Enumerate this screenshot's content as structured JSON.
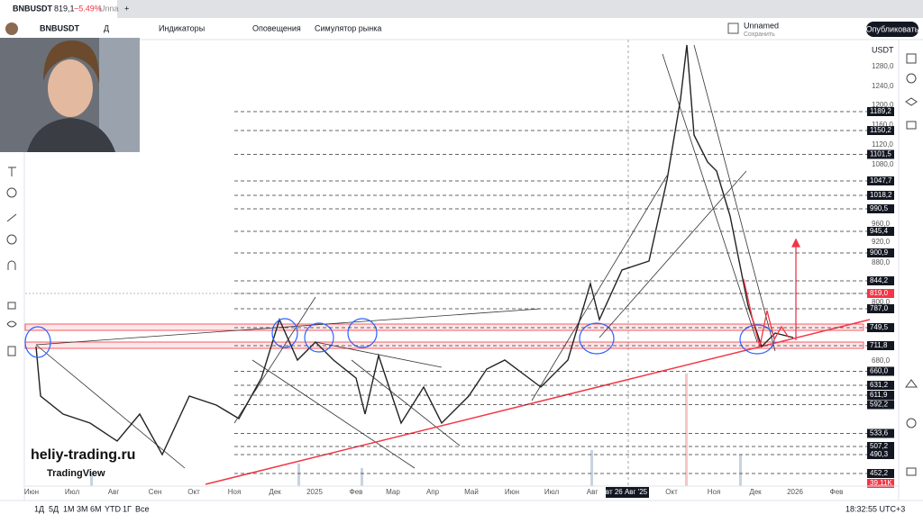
{
  "tab": {
    "symbol": "BNBUSDT",
    "price": "819,1",
    "change": "−5.49%",
    "rest": "Unna"
  },
  "toolbar": {
    "symbol": "BNBUSDT",
    "interval": "Д",
    "indicators": "Индикаторы",
    "alerts": "Оповещения",
    "replay": "Симулятор рынка",
    "layout_name": "Unnamed",
    "layout_sub": "Сохранить",
    "publish": "Опубликовать"
  },
  "price_axis": {
    "currency": "USDT",
    "ticks": [
      "1280,0",
      "1240,0",
      "1200,0",
      "1160,0",
      "1120,0",
      "1080,0",
      "960,0",
      "920,0",
      "880,0",
      "800,0",
      "680,0"
    ],
    "levels": [
      "1189,2",
      "1150,2",
      "1101,5",
      "1047,7",
      "1018,2",
      "990,5",
      "945,4",
      "900,9",
      "844,2",
      "819,0",
      "787,0",
      "749,5",
      "711,8",
      "660,0",
      "631,2",
      "611,9",
      "592,2",
      "533,6",
      "507,2",
      "490,3",
      "452,2",
      "39,11K"
    ]
  },
  "time_axis": [
    "Июн",
    "Июл",
    "Авг",
    "Сен",
    "Окт",
    "Ноя",
    "Дек",
    "2025",
    "Фев",
    "Мар",
    "Апр",
    "Май",
    "Июн",
    "Июл",
    "Авг",
    "вт 26 Авг '25",
    "Окт",
    "Ноя",
    "Дек",
    "2026",
    "Фев"
  ],
  "ranges": [
    "1Д",
    "5Д",
    "1М",
    "3М",
    "6М",
    "YTD",
    "1Г",
    "Все"
  ],
  "clock": "18:32:55 UTC+3",
  "watermark": {
    "site": "heliy-trading.ru",
    "brand": "TradingView"
  }
}
